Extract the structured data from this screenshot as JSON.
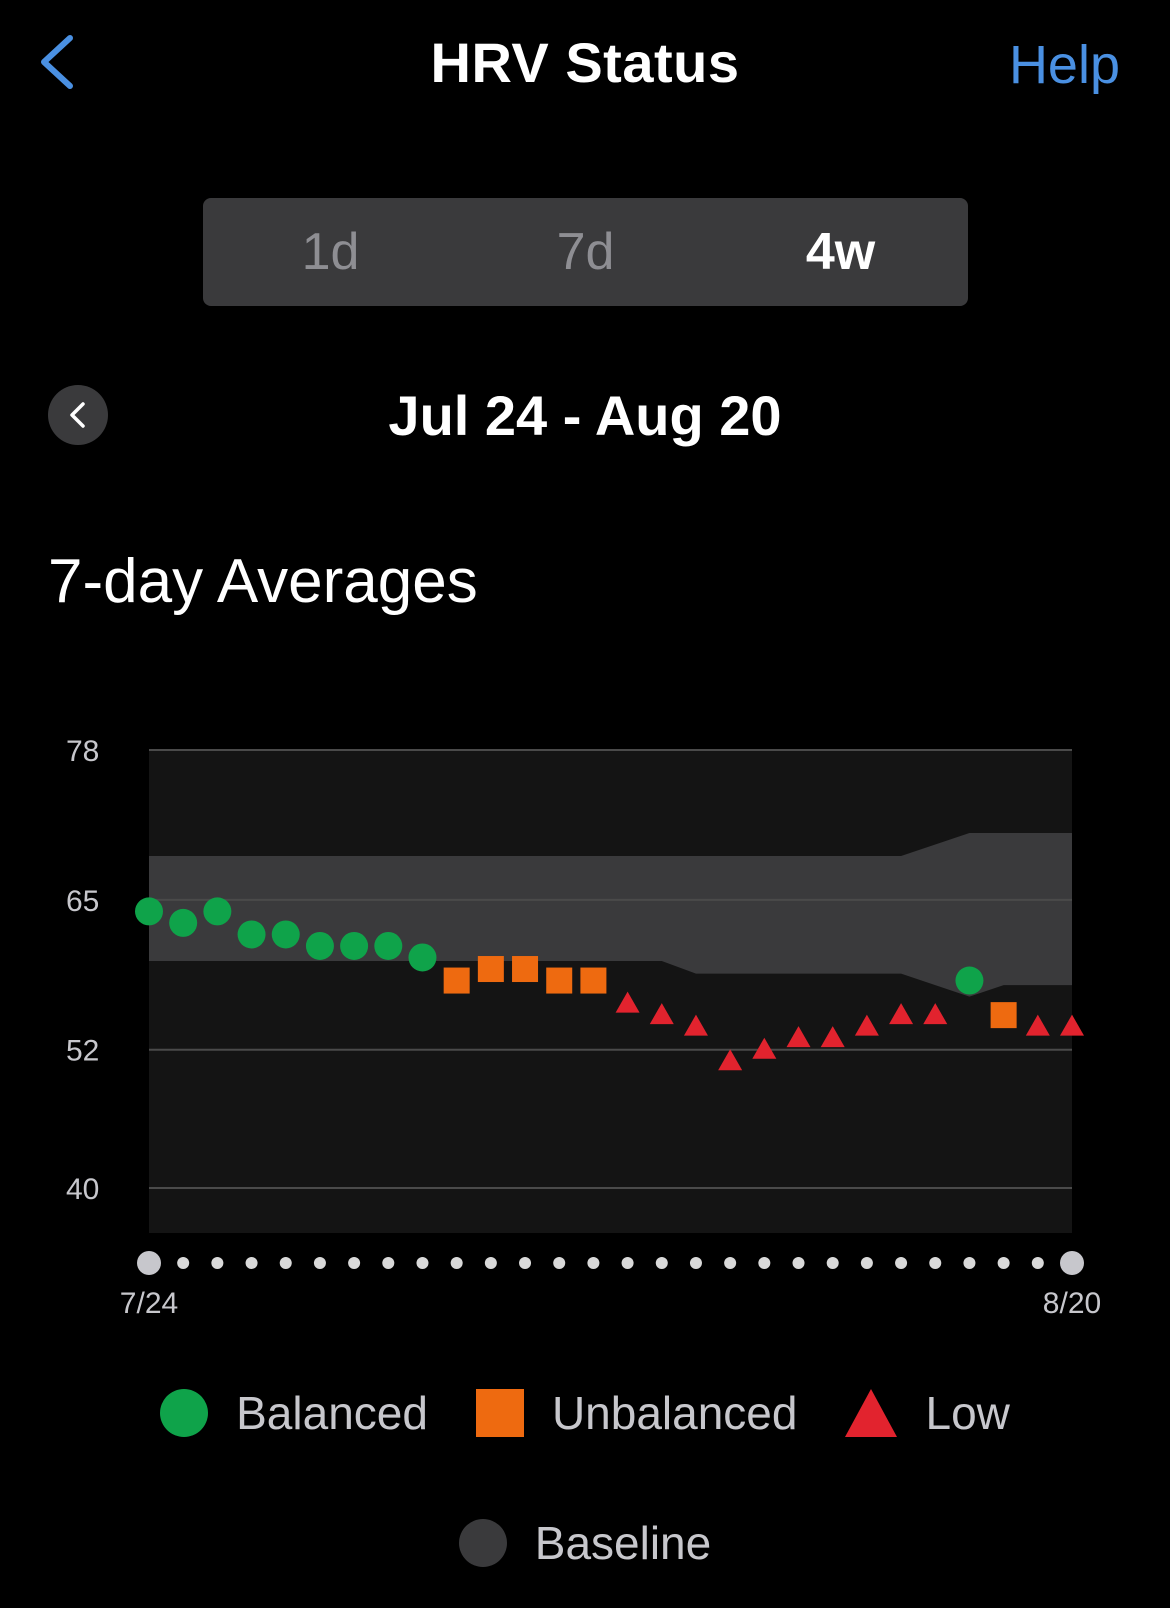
{
  "header": {
    "title": "HRV Status",
    "help_label": "Help"
  },
  "tabs": [
    {
      "label": "1d",
      "active": false
    },
    {
      "label": "7d",
      "active": false
    },
    {
      "label": "4w",
      "active": true
    }
  ],
  "range_label": "Jul 24 - Aug 20",
  "section_title": "7-day Averages",
  "colors": {
    "balanced": "#0fa34a",
    "unbalanced": "#ee6a10",
    "low": "#e2232e",
    "baseline": "#3a3a3c",
    "accent": "#4a90e2"
  },
  "chart_data": {
    "type": "scatter",
    "title": "7-day Averages",
    "y_ticks": [
      "78",
      "65",
      "52",
      "40"
    ],
    "ylim": [
      36.1,
      78
    ],
    "x_tick_labels": [
      "7/24",
      "8/20"
    ],
    "days": 28,
    "series": [
      {
        "name": "Balanced",
        "marker": "circle",
        "points": [
          [
            0,
            64
          ],
          [
            1,
            63
          ],
          [
            2,
            64
          ],
          [
            3,
            62
          ],
          [
            4,
            62
          ],
          [
            5,
            61
          ],
          [
            6,
            61
          ],
          [
            7,
            61
          ],
          [
            8,
            60
          ],
          [
            24,
            58
          ]
        ]
      },
      {
        "name": "Unbalanced",
        "marker": "square",
        "points": [
          [
            9,
            58
          ],
          [
            10,
            59
          ],
          [
            11,
            59
          ],
          [
            12,
            58
          ],
          [
            13,
            58
          ],
          [
            25,
            55
          ]
        ]
      },
      {
        "name": "Low",
        "marker": "triangle",
        "points": [
          [
            14,
            56
          ],
          [
            15,
            55
          ],
          [
            16,
            54
          ],
          [
            17,
            51
          ],
          [
            18,
            52
          ],
          [
            19,
            53
          ],
          [
            20,
            53
          ],
          [
            21,
            54
          ],
          [
            22,
            55
          ],
          [
            23,
            55
          ],
          [
            26,
            54
          ],
          [
            27,
            54
          ]
        ]
      }
    ],
    "baseline": {
      "name": "Baseline",
      "x": [
        0,
        15,
        16,
        22,
        24,
        25,
        27
      ],
      "upper": [
        68.8,
        68.8,
        68.8,
        68.8,
        70.8,
        70.8,
        70.8
      ],
      "lower": [
        59.7,
        59.7,
        58.6,
        58.6,
        56.6,
        57.6,
        57.6
      ]
    }
  },
  "legend": [
    {
      "label": "Balanced"
    },
    {
      "label": "Unbalanced"
    },
    {
      "label": "Low"
    },
    {
      "label": "Baseline"
    }
  ]
}
